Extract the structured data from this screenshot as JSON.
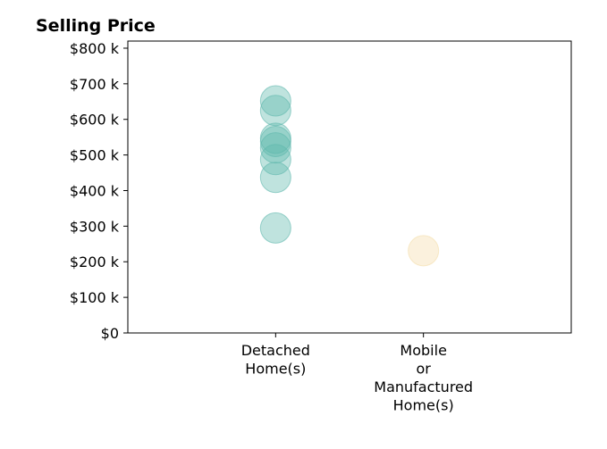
{
  "chart_data": {
    "type": "scatter",
    "title": "Selling Price",
    "xlabel": "",
    "ylabel": "",
    "categories": [
      [
        "Detached",
        "Home(s)"
      ],
      [
        "Mobile",
        "or",
        "Manufactured",
        "Home(s)"
      ]
    ],
    "ylim": [
      0,
      820000
    ],
    "yticks": [
      0,
      100000,
      200000,
      300000,
      400000,
      500000,
      600000,
      700000,
      800000
    ],
    "ytick_labels": [
      "$0",
      "$100 k",
      "$200 k",
      "$300 k",
      "$400 k",
      "$500 k",
      "$600 k",
      "$700 k",
      "$800 k"
    ],
    "grid": false,
    "series": [
      {
        "color": "#5fb8ad",
        "category_index": 0,
        "values": [
          295000,
          437000,
          487000,
          520000,
          538000,
          547000,
          625000,
          652000
        ]
      },
      {
        "color": "#f4ddaa",
        "category_index": 1,
        "values": [
          231000
        ]
      }
    ]
  }
}
